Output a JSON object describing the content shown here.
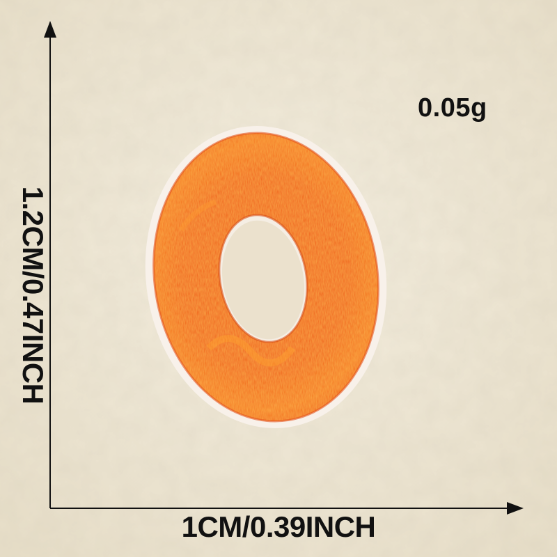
{
  "product": {
    "name": "embroidered-letter-o-patch",
    "color": "#f0621a",
    "highlight_color": "#ffa12e",
    "backing_color": "#f7efe6"
  },
  "background": {
    "color": "#efe8d6"
  },
  "labels": {
    "weight": "0.05g",
    "width": "1CM/0.39INCH",
    "height": "1.2CM/0.47INCH"
  },
  "arrows": {
    "color": "#111111"
  }
}
